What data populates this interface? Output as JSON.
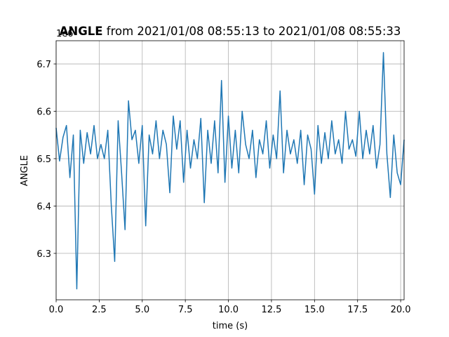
{
  "chart_data": {
    "type": "line",
    "title_bold": "ANGLE",
    "title": "from 2021/01/08 08:55:13 to 2021/01/08 08:55:33",
    "x_label": "time (s)",
    "y_label": "ANGLE",
    "y_offset_label": "1e6",
    "x": [
      0.0,
      0.2,
      0.4,
      0.6,
      0.8,
      1.0,
      1.2,
      1.4,
      1.6,
      1.8,
      2.0,
      2.2,
      2.4,
      2.6,
      2.8,
      3.0,
      3.2,
      3.4,
      3.6,
      3.8,
      4.0,
      4.2,
      4.4,
      4.6,
      4.8,
      5.0,
      5.2,
      5.4,
      5.6,
      5.8,
      6.0,
      6.2,
      6.4,
      6.6,
      6.8,
      7.0,
      7.2,
      7.4,
      7.6,
      7.8,
      8.0,
      8.2,
      8.4,
      8.6,
      8.8,
      9.0,
      9.2,
      9.4,
      9.6,
      9.8,
      10.0,
      10.2,
      10.4,
      10.6,
      10.8,
      11.0,
      11.2,
      11.4,
      11.6,
      11.8,
      12.0,
      12.2,
      12.4,
      12.6,
      12.8,
      13.0,
      13.2,
      13.4,
      13.6,
      13.8,
      14.0,
      14.2,
      14.4,
      14.6,
      14.8,
      15.0,
      15.2,
      15.4,
      15.6,
      15.8,
      16.0,
      16.2,
      16.4,
      16.6,
      16.8,
      17.0,
      17.2,
      17.4,
      17.6,
      17.8,
      18.0,
      18.2,
      18.4,
      18.6,
      18.8,
      19.0,
      19.2,
      19.4,
      19.6,
      19.8,
      20.0,
      20.2
    ],
    "series": [
      {
        "name": "ANGLE",
        "color": "#1f77b4",
        "values": [
          6.565,
          6.495,
          6.545,
          6.57,
          6.46,
          6.55,
          6.225,
          6.56,
          6.49,
          6.555,
          6.51,
          6.57,
          6.5,
          6.53,
          6.5,
          6.56,
          6.403,
          6.283,
          6.58,
          6.47,
          6.35,
          6.622,
          6.54,
          6.56,
          6.49,
          6.57,
          6.358,
          6.55,
          6.51,
          6.58,
          6.5,
          6.56,
          6.53,
          6.428,
          6.59,
          6.52,
          6.58,
          6.45,
          6.56,
          6.48,
          6.54,
          6.5,
          6.585,
          6.407,
          6.56,
          6.49,
          6.58,
          6.47,
          6.665,
          6.45,
          6.59,
          6.48,
          6.56,
          6.47,
          6.6,
          6.53,
          6.5,
          6.56,
          6.46,
          6.54,
          6.51,
          6.58,
          6.48,
          6.55,
          6.5,
          6.643,
          6.47,
          6.56,
          6.51,
          6.54,
          6.49,
          6.56,
          6.445,
          6.55,
          6.52,
          6.425,
          6.57,
          6.49,
          6.555,
          6.5,
          6.58,
          6.51,
          6.54,
          6.49,
          6.6,
          6.52,
          6.54,
          6.505,
          6.6,
          6.5,
          6.56,
          6.51,
          6.57,
          6.48,
          6.53,
          6.724,
          6.51,
          6.418,
          6.55,
          6.47,
          6.445,
          6.54
        ]
      }
    ],
    "xlim": [
      0,
      20.2
    ],
    "ylim": [
      6.202,
      6.749
    ],
    "xticks": [
      {
        "value": 0,
        "label": "0.0"
      },
      2.5,
      {
        "value": 5,
        "label": "5.0"
      },
      7.5,
      {
        "value": 10,
        "label": "10.0"
      },
      12.5,
      {
        "value": 15,
        "label": "15.0"
      },
      17.5,
      {
        "value": 20,
        "label": "20.0"
      }
    ],
    "yticks": [
      6.3,
      6.4,
      6.5,
      6.6,
      6.7
    ],
    "grid": true
  }
}
